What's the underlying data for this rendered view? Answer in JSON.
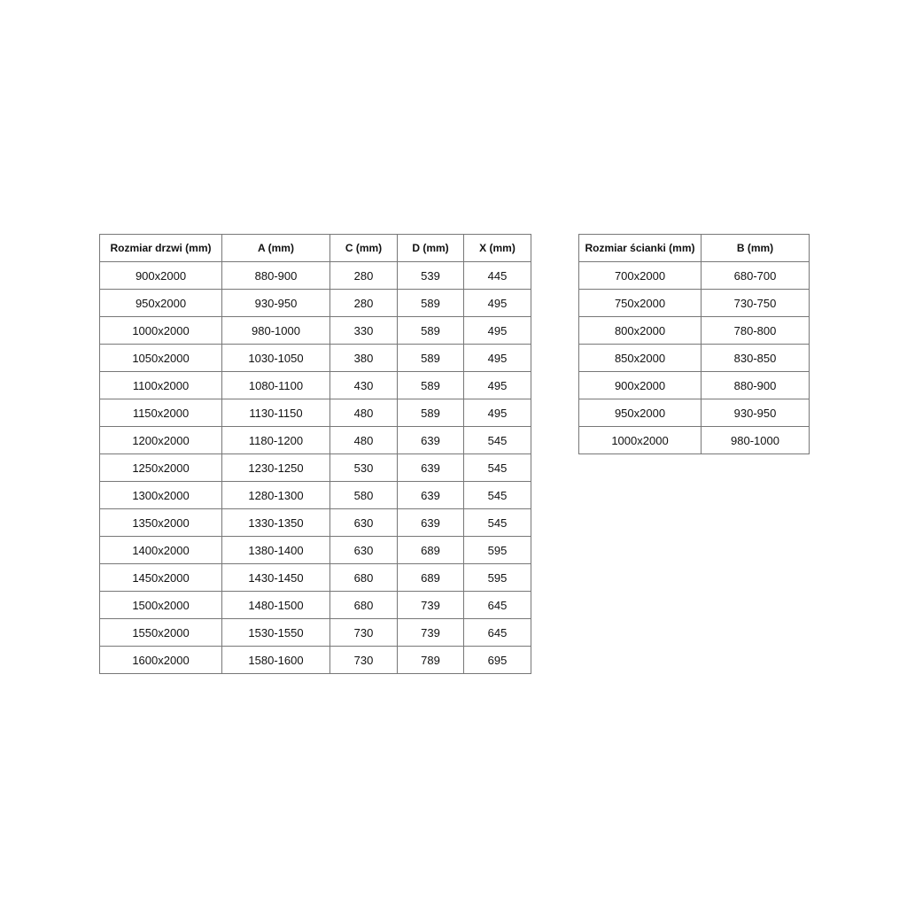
{
  "tables": [
    {
      "header": [
        "Rozmiar drzwi (mm)",
        "A (mm)",
        "C (mm)",
        "D (mm)",
        "X (mm)"
      ],
      "rows": [
        [
          "900x2000",
          "880-900",
          "280",
          "539",
          "445"
        ],
        [
          "950x2000",
          "930-950",
          "280",
          "589",
          "495"
        ],
        [
          "1000x2000",
          "980-1000",
          "330",
          "589",
          "495"
        ],
        [
          "1050x2000",
          "1030-1050",
          "380",
          "589",
          "495"
        ],
        [
          "1100x2000",
          "1080-1100",
          "430",
          "589",
          "495"
        ],
        [
          "1150x2000",
          "1130-1150",
          "480",
          "589",
          "495"
        ],
        [
          "1200x2000",
          "1180-1200",
          "480",
          "639",
          "545"
        ],
        [
          "1250x2000",
          "1230-1250",
          "530",
          "639",
          "545"
        ],
        [
          "1300x2000",
          "1280-1300",
          "580",
          "639",
          "545"
        ],
        [
          "1350x2000",
          "1330-1350",
          "630",
          "639",
          "545"
        ],
        [
          "1400x2000",
          "1380-1400",
          "630",
          "689",
          "595"
        ],
        [
          "1450x2000",
          "1430-1450",
          "680",
          "689",
          "595"
        ],
        [
          "1500x2000",
          "1480-1500",
          "680",
          "739",
          "645"
        ],
        [
          "1550x2000",
          "1530-1550",
          "730",
          "739",
          "645"
        ],
        [
          "1600x2000",
          "1580-1600",
          "730",
          "789",
          "695"
        ]
      ]
    },
    {
      "header": [
        "Rozmiar ścianki (mm)",
        "B (mm)"
      ],
      "rows": [
        [
          "700x2000",
          "680-700"
        ],
        [
          "750x2000",
          "730-750"
        ],
        [
          "800x2000",
          "780-800"
        ],
        [
          "850x2000",
          "830-850"
        ],
        [
          "900x2000",
          "880-900"
        ],
        [
          "950x2000",
          "930-950"
        ],
        [
          "1000x2000",
          "980-1000"
        ]
      ]
    }
  ]
}
